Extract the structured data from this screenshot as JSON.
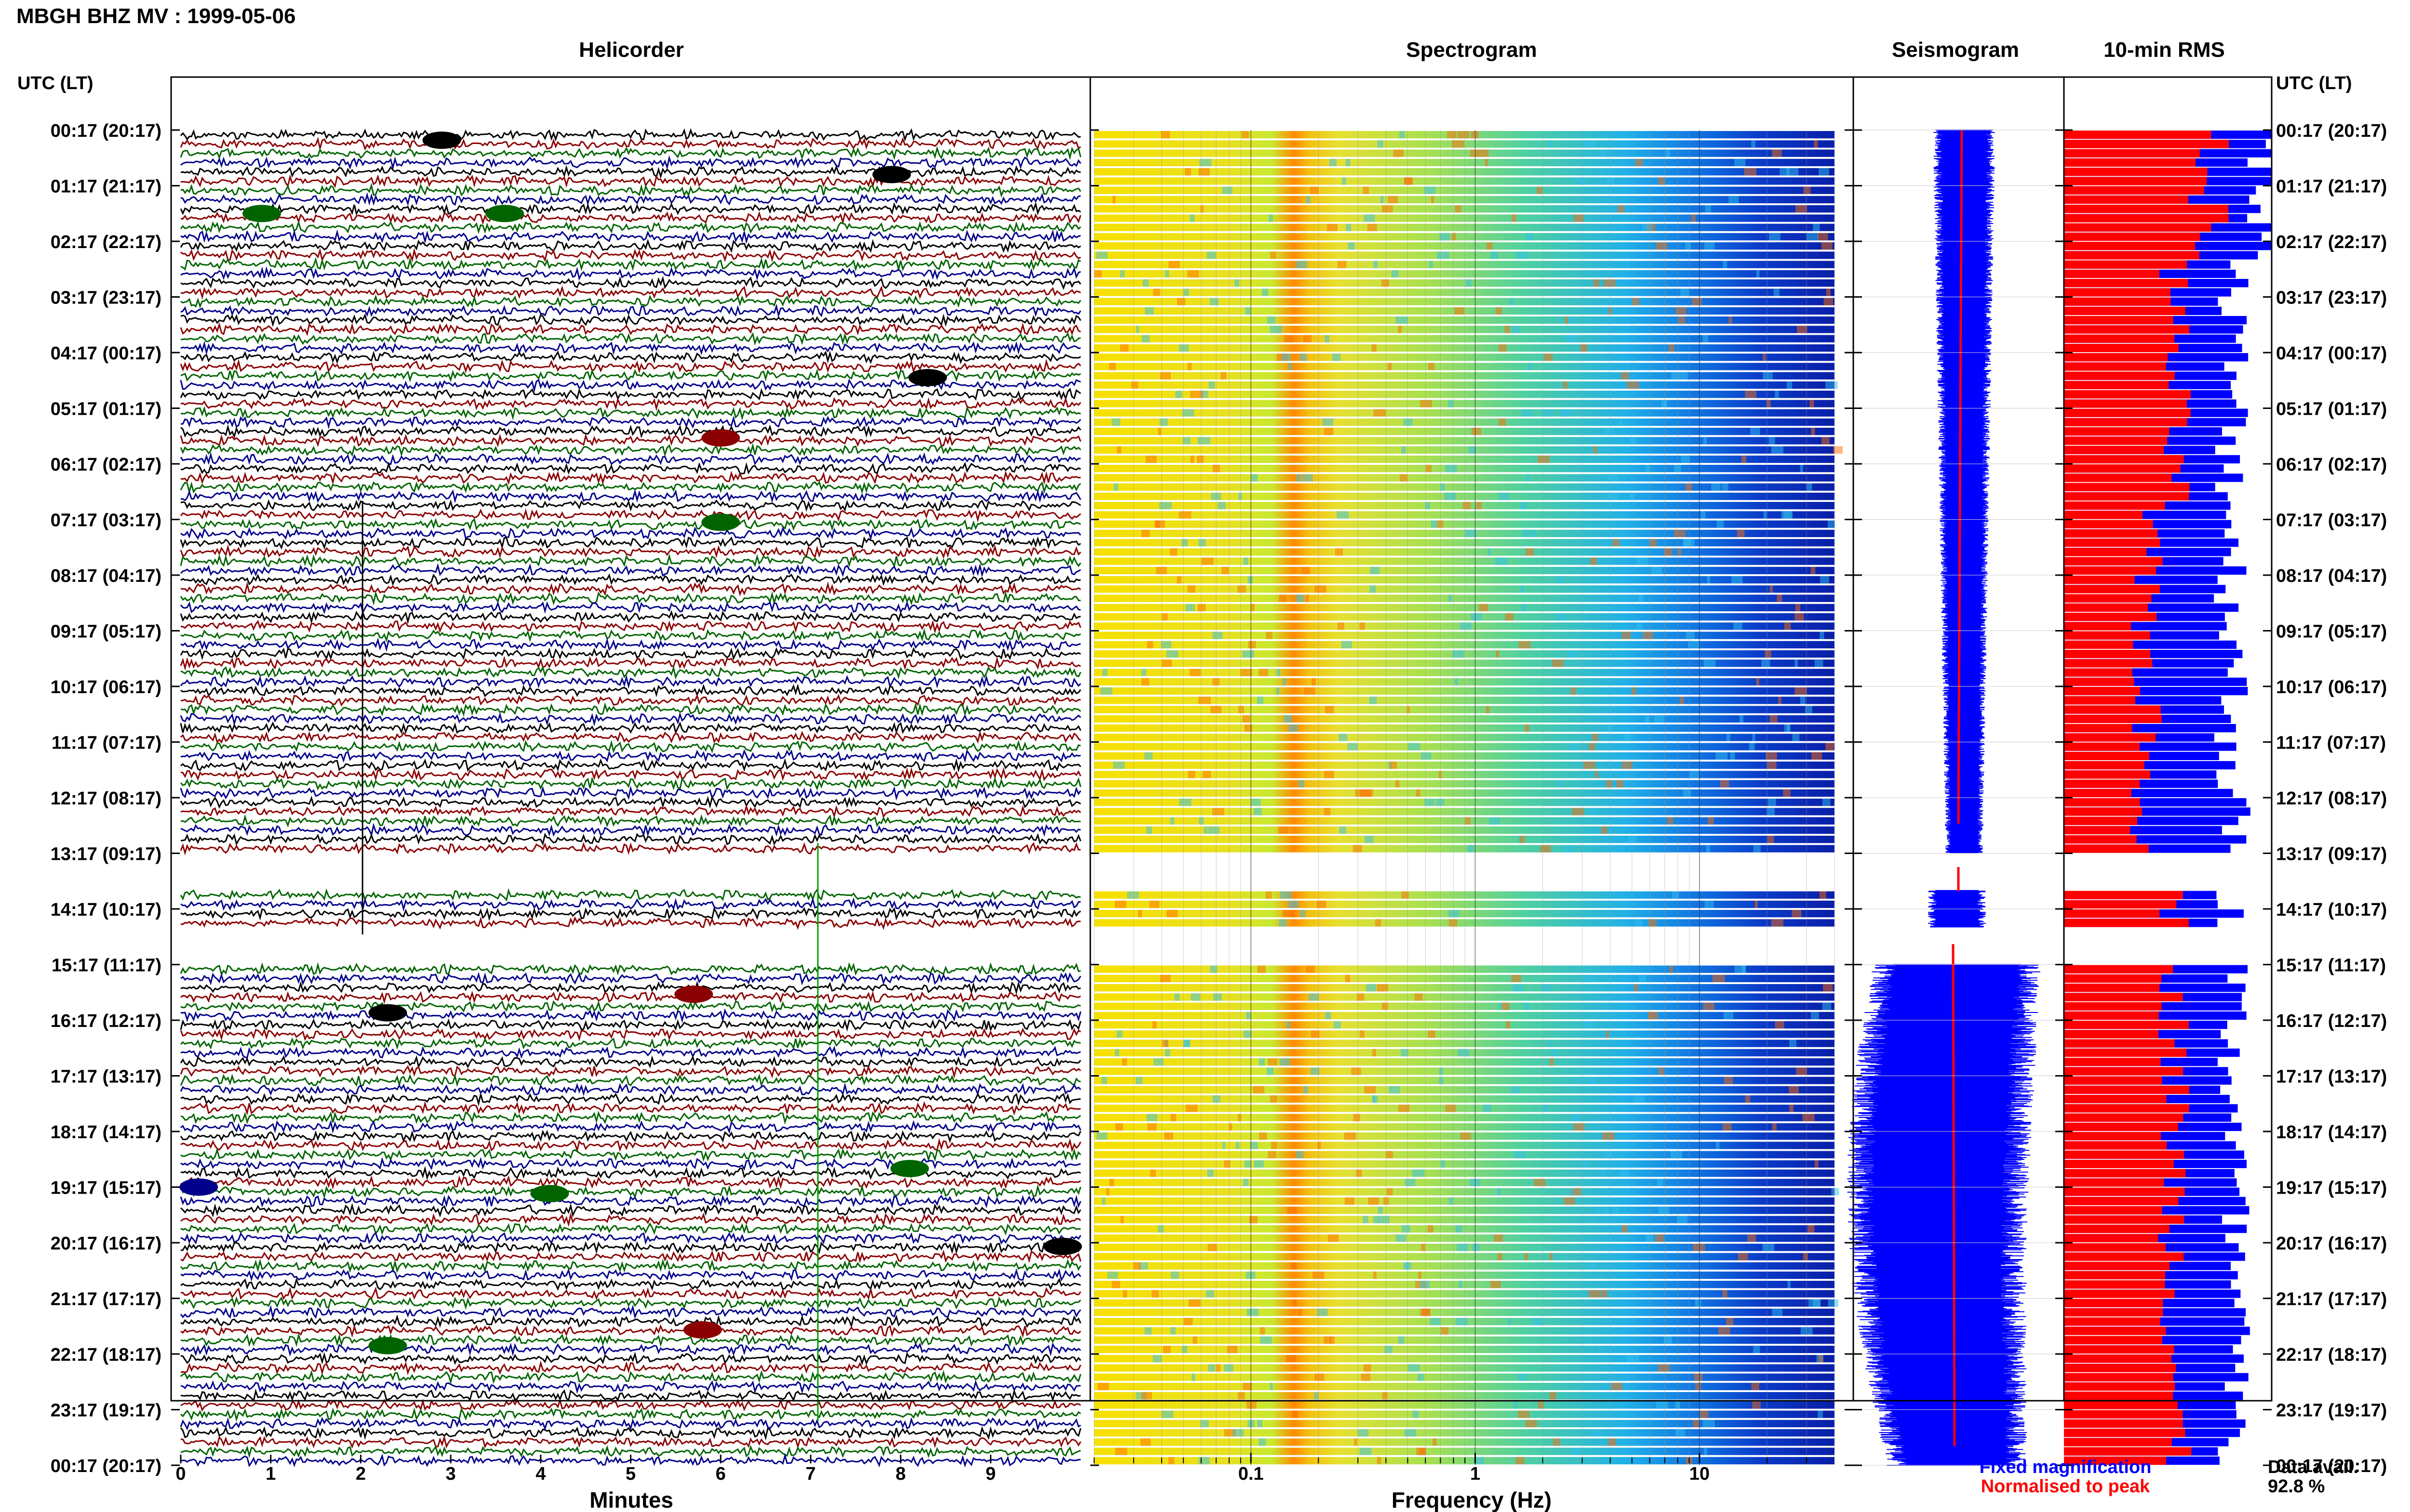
{
  "header": {
    "title": "MBGH BHZ MV : 1999-05-06",
    "panel_titles": [
      "Helicorder",
      "Spectrogram",
      "Seismogram",
      "10-min RMS"
    ],
    "utc_lt_label": "UTC (LT)"
  },
  "chart_data": [
    {
      "type": "line",
      "name": "helicorder",
      "title": "Helicorder",
      "xlabel": "Minutes",
      "ylabel": "UTC (LT)",
      "xlim": [
        0,
        10
      ],
      "x_ticks": [
        "0",
        "1",
        "2",
        "3",
        "4",
        "5",
        "6",
        "7",
        "8",
        "9"
      ],
      "time_labels": [
        "00:17 (20:17)",
        "01:17 (21:17)",
        "02:17 (22:17)",
        "03:17 (23:17)",
        "04:17 (00:17)",
        "05:17 (01:17)",
        "06:17 (02:17)",
        "07:17 (03:17)",
        "08:17 (04:17)",
        "09:17 (05:17)",
        "10:17 (06:17)",
        "11:17 (07:17)",
        "12:17 (08:17)",
        "13:17 (09:17)",
        "14:17 (10:17)",
        "15:17 (11:17)",
        "16:17 (12:17)",
        "17:17 (13:17)",
        "18:17 (14:17)",
        "19:17 (15:17)",
        "20:17 (16:17)",
        "21:17 (17:17)",
        "22:17 (18:17)",
        "23:17 (19:17)",
        "00:17 (20:17)"
      ],
      "trace_colors": [
        "#000000",
        "#8b0000",
        "#006400",
        "#00008b"
      ],
      "data_gaps_utc": [
        "13:17-14:00",
        "14:45-15:17"
      ]
    },
    {
      "type": "heatmap",
      "name": "spectrogram",
      "title": "Spectrogram",
      "xlabel": "Frequency (Hz)",
      "x_scale": "log",
      "xlim": [
        0.02,
        40
      ],
      "x_ticks": [
        "0.1",
        "1",
        "10"
      ],
      "colormap": "jet",
      "dominant_band_hz": [
        0.2,
        0.3
      ]
    },
    {
      "type": "line",
      "name": "seismogram",
      "title": "Seismogram",
      "series": [
        {
          "name": "Fixed magnification",
          "color": "#0000ff"
        },
        {
          "name": "Normalised to peak",
          "color": "#ff0000"
        }
      ]
    },
    {
      "type": "bar",
      "name": "rms",
      "title": "10-min RMS",
      "orientation": "horizontal",
      "colors": {
        "red": "#ff0000",
        "blue": "#0000ff"
      },
      "data_availability_label": "Data avail.",
      "data_availability": "92.8 %"
    }
  ]
}
